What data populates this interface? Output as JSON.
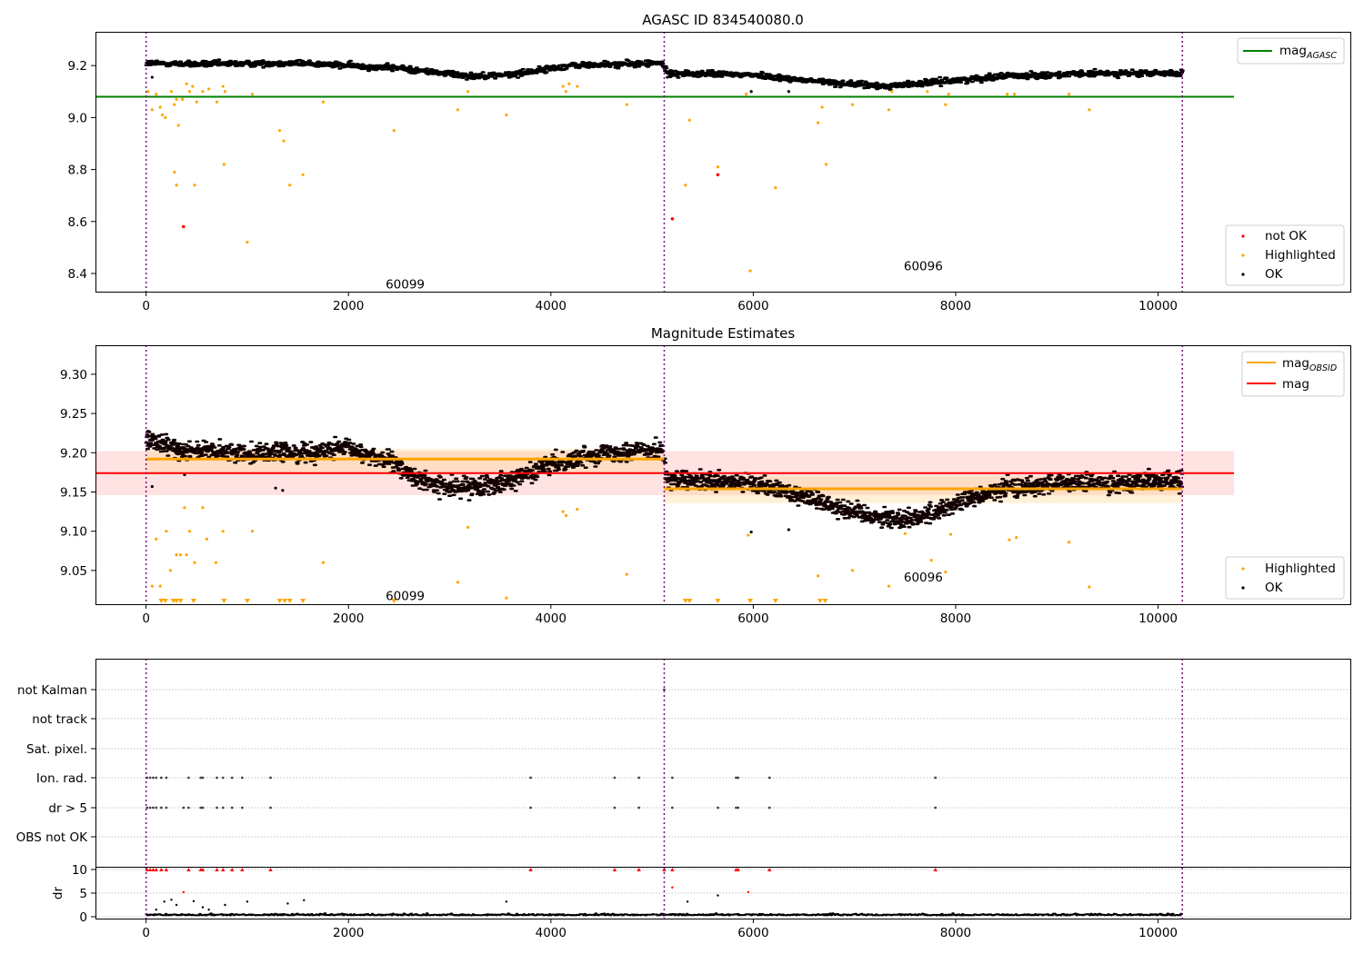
{
  "chart_data": [
    {
      "type": "scatter",
      "title": "AGASC ID 834540080.0",
      "xlim": [
        -500,
        11900
      ],
      "ylim": [
        8.33,
        9.33
      ],
      "xticks": [
        0,
        2000,
        4000,
        6000,
        8000,
        10000
      ],
      "yticks": [
        8.4,
        8.6,
        8.8,
        9.0,
        9.2
      ],
      "ytick_labels": [
        "8.4",
        "8.6",
        "8.8",
        "9.0",
        "9.2"
      ],
      "obs_boundaries": [
        0,
        5120,
        10240
      ],
      "obsid_labels": [
        {
          "text": "60099",
          "x": 2560,
          "y": 8.36
        },
        {
          "text": "60096",
          "x": 7680,
          "y": 8.43
        }
      ],
      "mag_agasc": {
        "name": "mag$_{AGASC}$",
        "value": 9.08,
        "x": [
          -500,
          10750
        ],
        "color": "#008000"
      },
      "ok_trend": {
        "x": [
          0,
          500,
          1500,
          2500,
          3200,
          3600,
          4200,
          5100,
          5150,
          6000,
          6600,
          7300,
          7900,
          8500,
          9500,
          10240
        ],
        "y": [
          9.21,
          9.205,
          9.21,
          9.19,
          9.16,
          9.165,
          9.2,
          9.21,
          9.17,
          9.165,
          9.14,
          9.12,
          9.14,
          9.16,
          9.17,
          9.17
        ]
      },
      "highlighted": {
        "x": [
          20,
          60,
          100,
          140,
          160,
          190,
          250,
          280,
          300,
          320,
          360,
          400,
          430,
          460,
          500,
          560,
          620,
          700,
          760,
          780,
          280,
          300,
          480,
          770,
          1000,
          1050,
          1320,
          1360,
          1420,
          1550,
          1750,
          2450,
          3080,
          3180,
          3560,
          4120,
          4150,
          4180,
          4260,
          4750,
          5330,
          5370,
          5650,
          5930,
          5970,
          6220,
          6640,
          6680,
          6720,
          6980,
          7340,
          7370,
          7720,
          7900,
          7930,
          8510,
          8580,
          9120,
          9320
        ],
        "y": [
          9.1,
          9.03,
          9.09,
          9.04,
          9.01,
          9.0,
          9.1,
          9.05,
          9.07,
          8.97,
          9.07,
          9.13,
          9.1,
          9.12,
          9.06,
          9.1,
          9.11,
          9.06,
          9.12,
          9.1,
          8.79,
          8.74,
          8.74,
          8.82,
          8.52,
          9.09,
          8.95,
          8.91,
          8.74,
          8.78,
          9.06,
          8.95,
          9.03,
          9.1,
          9.01,
          9.12,
          9.1,
          9.13,
          9.12,
          9.05,
          8.74,
          8.99,
          8.81,
          9.09,
          8.41,
          8.73,
          8.98,
          9.04,
          8.82,
          9.05,
          9.03,
          9.1,
          9.1,
          9.05,
          9.09,
          9.09,
          9.09,
          9.09,
          9.03
        ]
      },
      "not_ok": {
        "x": [
          370,
          5200,
          5650
        ],
        "y": [
          8.58,
          8.61,
          8.78
        ]
      },
      "legends": [
        {
          "location": "upper right",
          "entries": [
            {
              "label": "mag$_{AGASC}$",
              "marker": "line",
              "color": "#008000"
            }
          ]
        },
        {
          "location": "lower right",
          "entries": [
            {
              "label": "not OK",
              "marker": "dot",
              "color": "#ff0000"
            },
            {
              "label": "Highlighted",
              "marker": "dot",
              "color": "#ffa500"
            },
            {
              "label": "OK",
              "marker": "dot",
              "color": "#000000"
            }
          ]
        }
      ]
    },
    {
      "type": "scatter",
      "title": "Magnitude Estimates",
      "xlim": [
        -500,
        11900
      ],
      "ylim": [
        9.007,
        9.337
      ],
      "xticks": [
        0,
        2000,
        4000,
        6000,
        8000,
        10000
      ],
      "yticks": [
        9.05,
        9.1,
        9.15,
        9.2,
        9.25,
        9.3
      ],
      "ytick_labels": [
        "9.05",
        "9.10",
        "9.15",
        "9.20",
        "9.25",
        "9.30"
      ],
      "obs_boundaries": [
        0,
        5120,
        10240
      ],
      "obsid_labels": [
        {
          "text": "60099",
          "x": 2560,
          "y": 9.018
        },
        {
          "text": "60096",
          "x": 7680,
          "y": 9.042
        }
      ],
      "mag": {
        "name": "mag",
        "value": 9.174,
        "band": [
          9.146,
          9.202
        ],
        "x": [
          -500,
          10750
        ],
        "color": "#ff0000"
      },
      "mag_obsid": [
        {
          "obsid": "60099",
          "value": 9.192,
          "band": [
            9.175,
            9.205
          ],
          "x": [
            0,
            5120
          ]
        },
        {
          "obsid": "60096",
          "value": 9.154,
          "band": [
            9.136,
            9.17
          ],
          "x": [
            5120,
            10240
          ]
        }
      ],
      "ok_trend": {
        "x": [
          0,
          300,
          800,
          1500,
          2000,
          2400,
          2700,
          3000,
          3300,
          3600,
          4000,
          4500,
          5100,
          5150,
          6000,
          6500,
          7000,
          7400,
          7700,
          8000,
          8500,
          9000,
          9500,
          10240
        ],
        "y": [
          9.215,
          9.205,
          9.2,
          9.2,
          9.205,
          9.19,
          9.165,
          9.155,
          9.158,
          9.165,
          9.185,
          9.2,
          9.205,
          9.165,
          9.16,
          9.145,
          9.125,
          9.115,
          9.12,
          9.135,
          9.155,
          9.16,
          9.162,
          9.165
        ]
      },
      "highlighted": {
        "x": [
          60,
          100,
          140,
          200,
          240,
          300,
          340,
          380,
          400,
          430,
          480,
          560,
          600,
          690,
          760,
          1050,
          1750,
          3080,
          3180,
          3560,
          4120,
          4150,
          4260,
          4750,
          5950,
          6640,
          6980,
          7340,
          7500,
          7760,
          7900,
          7950,
          8530,
          8600,
          9120,
          9320
        ],
        "y": [
          9.03,
          9.09,
          9.03,
          9.1,
          9.05,
          9.07,
          9.07,
          9.13,
          9.07,
          9.1,
          9.06,
          9.13,
          9.09,
          9.06,
          9.1,
          9.1,
          9.06,
          9.035,
          9.105,
          9.015,
          9.125,
          9.12,
          9.128,
          9.045,
          9.095,
          9.043,
          9.05,
          9.03,
          9.097,
          9.063,
          9.048,
          9.096,
          9.089,
          9.092,
          9.086,
          9.029
        ]
      },
      "highlighted_offscale": [
        150,
        190,
        270,
        300,
        340,
        470,
        770,
        1000,
        1320,
        1370,
        1420,
        1550,
        2450,
        5330,
        5370,
        5650,
        5970,
        6220,
        6660,
        6710
      ],
      "legends": [
        {
          "location": "upper right",
          "entries": [
            {
              "label": "mag$_{OBSID}$",
              "marker": "line",
              "color": "#ffa500"
            },
            {
              "label": "mag",
              "marker": "line",
              "color": "#ff0000"
            }
          ]
        },
        {
          "location": "lower right",
          "entries": [
            {
              "label": "Highlighted",
              "marker": "dot",
              "color": "#ffa500"
            },
            {
              "label": "OK",
              "marker": "dot",
              "color": "#000000"
            }
          ]
        }
      ]
    },
    {
      "type": "scatter",
      "title": "",
      "xlim": [
        -500,
        11900
      ],
      "xticks": [
        0,
        2000,
        4000,
        6000,
        8000,
        10000
      ],
      "flag_rows": [
        "not Kalman",
        "not track",
        "Sat. pixel.",
        "Ion. rad.",
        "dr > 5",
        "OBS not OK"
      ],
      "obs_boundaries": [
        0,
        5120,
        10240
      ],
      "flags": {
        "not Kalman": [
          5120
        ],
        "not track": [],
        "Sat. pixel.": [],
        "Ion. rad.": [
          10,
          40,
          70,
          100,
          150,
          200,
          420,
          540,
          560,
          700,
          760,
          850,
          950,
          1230,
          3800,
          4630,
          4870,
          5200,
          5830,
          5850,
          6160,
          7800
        ],
        "dr > 5": [
          10,
          40,
          70,
          100,
          150,
          200,
          370,
          420,
          540,
          560,
          700,
          760,
          850,
          950,
          1230,
          3800,
          4630,
          4870,
          5200,
          5650,
          5830,
          5850,
          6160,
          7800
        ],
        "OBS not OK": []
      },
      "dr_panel": {
        "ylabel": "dr",
        "yticks": [
          0,
          5,
          10
        ],
        "ylim": [
          -0.5,
          10.5
        ],
        "clip": 10,
        "clipped_x": [
          10,
          40,
          70,
          100,
          150,
          200,
          420,
          540,
          560,
          700,
          760,
          850,
          950,
          1230,
          3800,
          4630,
          4870,
          5120,
          5200,
          5830,
          5850,
          6160,
          7800
        ],
        "outliers": {
          "x": [
            100,
            180,
            250,
            300,
            370,
            470,
            560,
            620,
            780,
            1000,
            1400,
            1560,
            3560,
            5200,
            5650,
            5950,
            5350
          ],
          "y": [
            1.5,
            3.2,
            3.6,
            2.5,
            5.2,
            3.3,
            2.0,
            1.5,
            2.5,
            3.2,
            2.8,
            3.5,
            3.2,
            6.2,
            4.5,
            5.2,
            3.2
          ]
        },
        "baseline": 0.3
      }
    }
  ]
}
